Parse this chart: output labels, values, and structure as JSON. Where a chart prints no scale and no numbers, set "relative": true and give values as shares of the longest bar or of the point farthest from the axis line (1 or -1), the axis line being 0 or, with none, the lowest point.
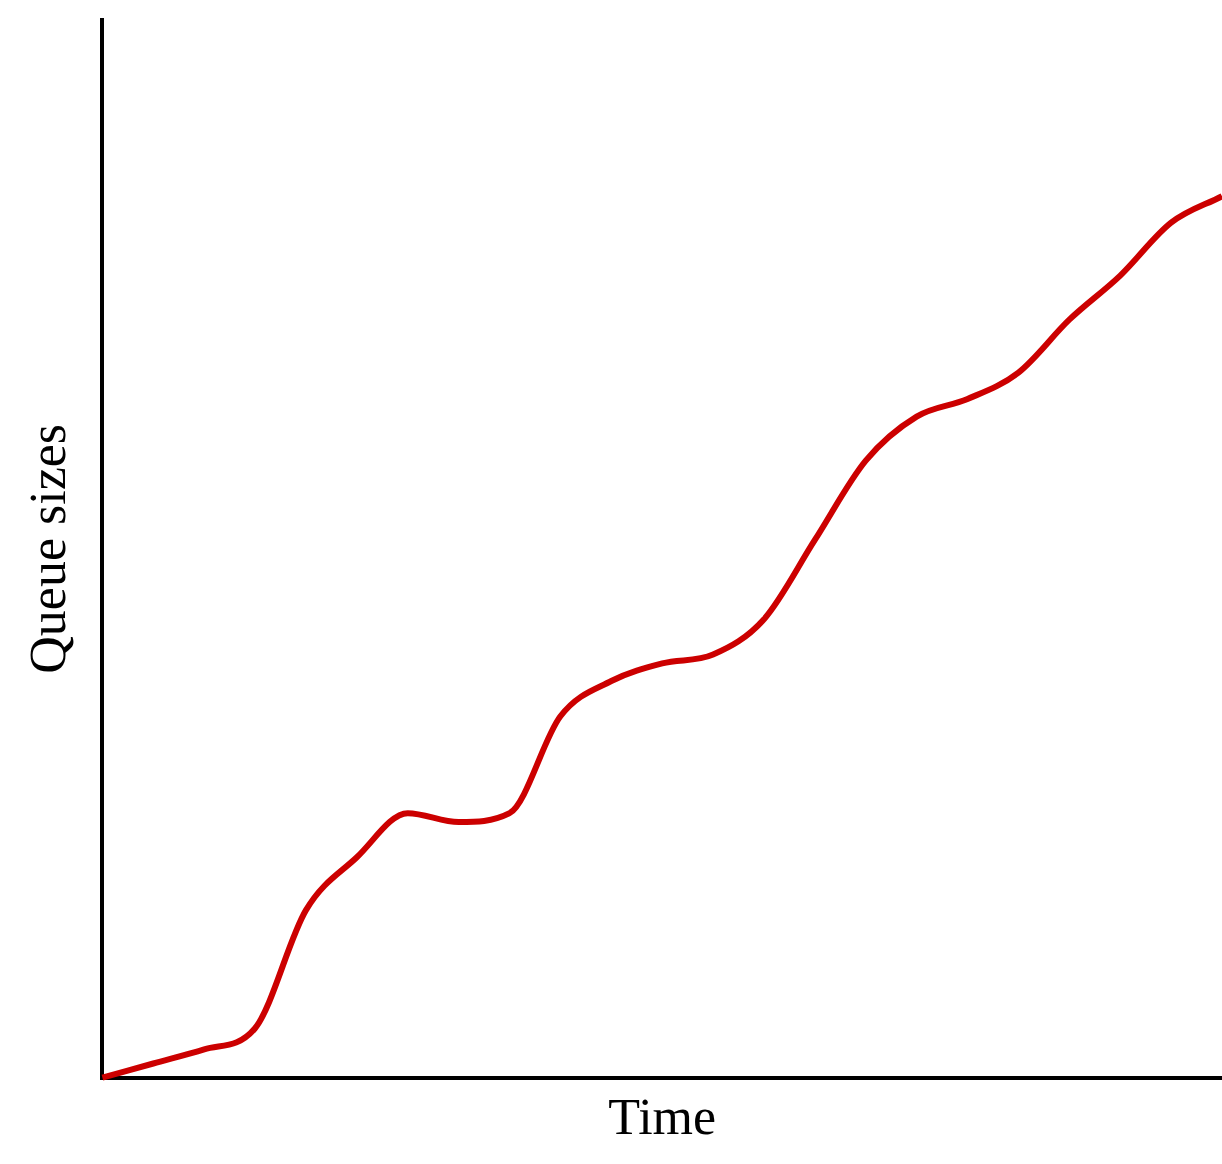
{
  "chart_data": {
    "type": "line",
    "xlabel": "Time",
    "ylabel": "Queue sizes",
    "relative": true,
    "tick_labels": false,
    "grid": false,
    "legend": false,
    "marker": "none",
    "line_style": "solid",
    "categories": [
      null,
      null,
      null,
      null,
      null,
      null,
      null,
      null,
      null,
      null,
      null,
      null,
      null,
      null,
      null,
      null,
      null,
      null,
      null,
      null,
      null,
      null,
      null
    ],
    "series": [
      {
        "color": "#cc0000",
        "values": [
          0,
          0.016,
          0.032,
          0.056,
          0.19,
          0.25,
          0.3,
          0.29,
          0.3,
          0.41,
          0.45,
          0.47,
          0.48,
          0.52,
          0.61,
          0.7,
          0.75,
          0.77,
          0.8,
          0.86,
          0.91,
          0.97,
          1
        ]
      }
    ]
  }
}
